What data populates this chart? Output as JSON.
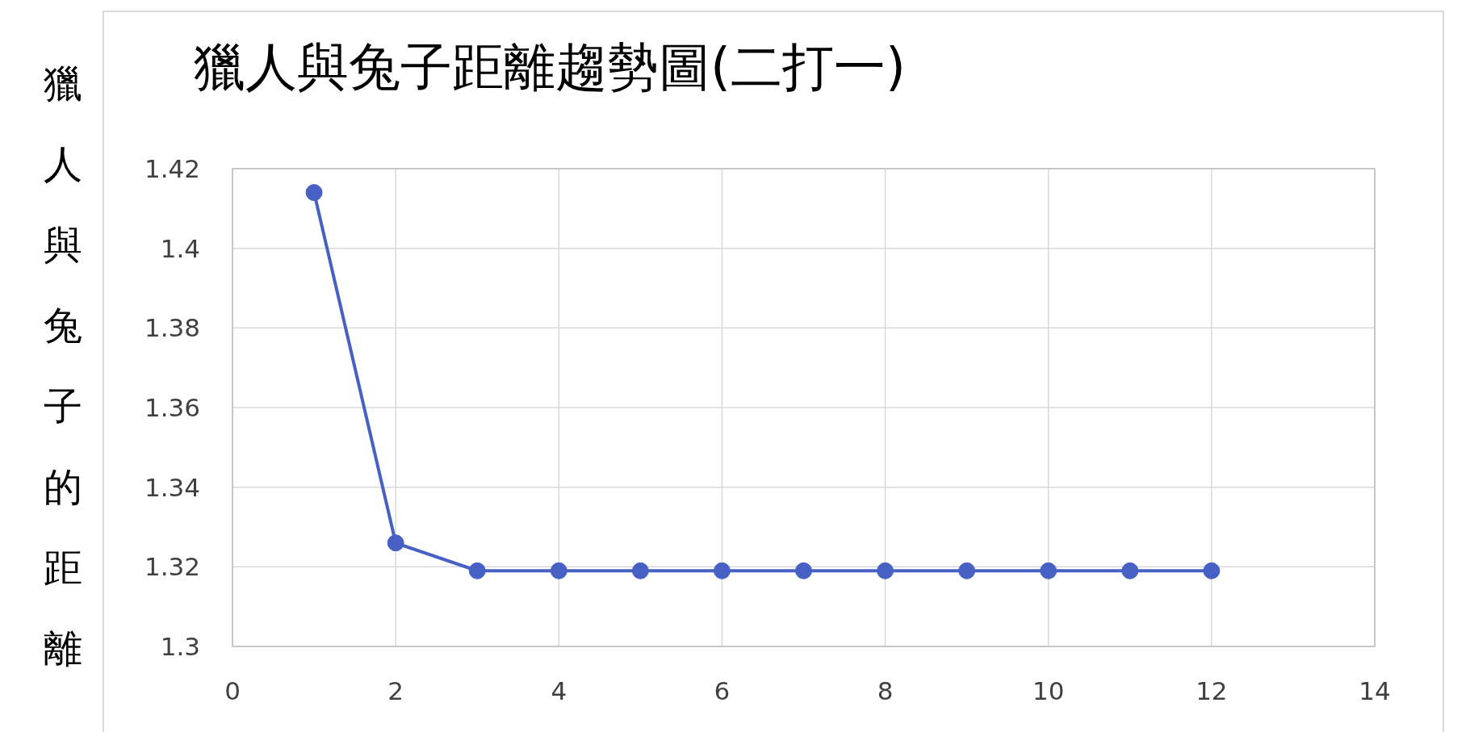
{
  "chart_data": {
    "type": "line",
    "title": "獵人與兔子距離趨勢圖(二打一)",
    "ylabel": "獵人與兔子的距離",
    "x": [
      1,
      2,
      3,
      4,
      5,
      6,
      7,
      8,
      9,
      10,
      11,
      12
    ],
    "series": [
      {
        "color": "#4760c4",
        "values": [
          1.414,
          1.326,
          1.319,
          1.319,
          1.319,
          1.319,
          1.319,
          1.319,
          1.319,
          1.319,
          1.319,
          1.319
        ]
      }
    ],
    "xlim": [
      0,
      14
    ],
    "xticks": [
      0,
      2,
      4,
      6,
      8,
      10,
      12,
      14
    ],
    "ylim": [
      1.3,
      1.42
    ],
    "yticks": [
      1.3,
      1.32,
      1.34,
      1.36,
      1.38,
      1.4,
      1.42
    ],
    "grid": true,
    "marker": "circle",
    "line_style": "solid"
  }
}
